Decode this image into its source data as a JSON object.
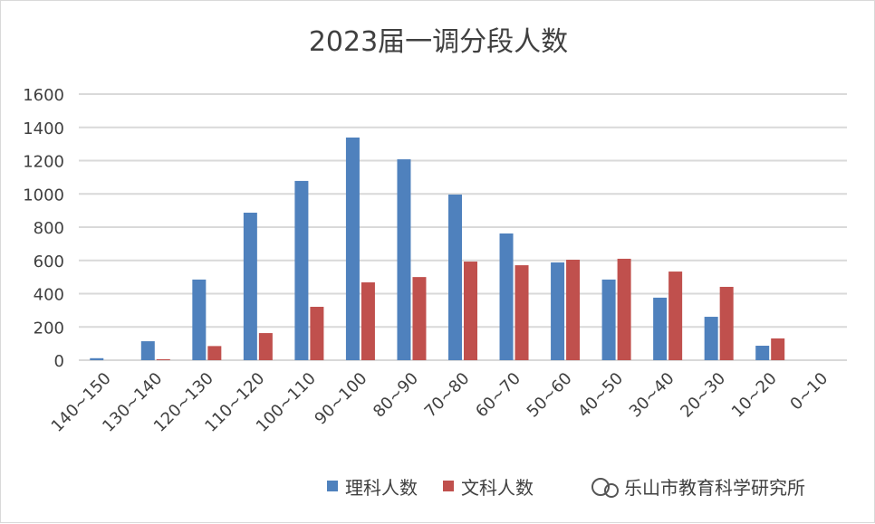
{
  "chart_data": {
    "type": "bar",
    "title": "2023届一调分段人数",
    "xlabel": "",
    "ylabel": "",
    "ylim": [
      0,
      1600
    ],
    "yticks": [
      0,
      200,
      400,
      600,
      800,
      1000,
      1200,
      1400,
      1600
    ],
    "grid": true,
    "legend_position": "bottom",
    "categories": [
      "140~150",
      "130~140",
      "120~130",
      "110~120",
      "100~110",
      "90~100",
      "80~90",
      "70~80",
      "60~70",
      "50~60",
      "40~50",
      "30~40",
      "20~30",
      "10~20",
      "0~10"
    ],
    "series": [
      {
        "name": "理科人数",
        "color": "#4f81bd",
        "values": [
          12,
          114,
          485,
          887,
          1078,
          1339,
          1208,
          996,
          762,
          588,
          485,
          376,
          261,
          87,
          0
        ]
      },
      {
        "name": "文科人数",
        "color": "#c0504d",
        "values": [
          0,
          6,
          85,
          163,
          321,
          468,
          500,
          593,
          571,
          604,
          610,
          533,
          441,
          131,
          0
        ]
      }
    ]
  },
  "watermark": "乐山市教育科学研究所"
}
